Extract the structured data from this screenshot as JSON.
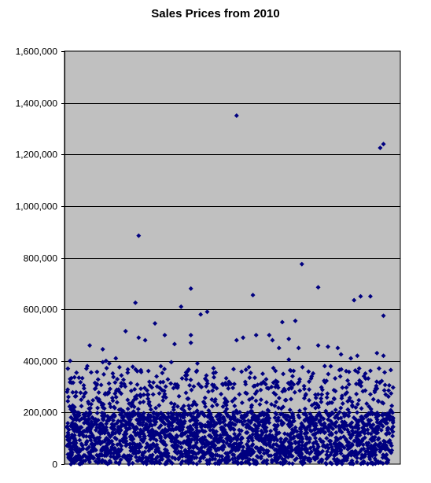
{
  "chart_data": {
    "type": "scatter",
    "title": "Sales Prices from 2010",
    "xlabel": "",
    "ylabel": "",
    "ylim": [
      0,
      1600000
    ],
    "yticks": [
      0,
      200000,
      400000,
      600000,
      800000,
      1000000,
      1200000,
      1400000,
      1600000
    ],
    "ytick_labels": [
      "0",
      "200,000",
      "400,000",
      "600,000",
      "800,000",
      "1,000,000",
      "1,200,000",
      "1,400,000",
      "1,600,000"
    ],
    "xlim": [
      0,
      1
    ],
    "grid": true,
    "legend": "none",
    "colors": {
      "plot_background": "#c0c0c0",
      "marker": "#000080",
      "gridline": "#000000",
      "axis": "#000000"
    },
    "marker": "diamond",
    "series": [
      {
        "values": [
          [
            0.01,
            400000
          ],
          [
            0.01,
            330000
          ],
          [
            0.02,
            210000
          ],
          [
            0.06,
            370000
          ],
          [
            0.07,
            460000
          ],
          [
            0.11,
            395000
          ],
          [
            0.11,
            445000
          ],
          [
            0.12,
            400000
          ],
          [
            0.13,
            390000
          ],
          [
            0.15,
            410000
          ],
          [
            0.18,
            515000
          ],
          [
            0.21,
            625000
          ],
          [
            0.22,
            885000
          ],
          [
            0.22,
            490000
          ],
          [
            0.24,
            480000
          ],
          [
            0.27,
            545000
          ],
          [
            0.3,
            500000
          ],
          [
            0.32,
            395000
          ],
          [
            0.33,
            465000
          ],
          [
            0.35,
            610000
          ],
          [
            0.37,
            360000
          ],
          [
            0.38,
            680000
          ],
          [
            0.38,
            500000
          ],
          [
            0.38,
            470000
          ],
          [
            0.4,
            390000
          ],
          [
            0.41,
            580000
          ],
          [
            0.43,
            590000
          ],
          [
            0.52,
            1350000
          ],
          [
            0.52,
            480000
          ],
          [
            0.54,
            490000
          ],
          [
            0.56,
            335000
          ],
          [
            0.57,
            655000
          ],
          [
            0.58,
            500000
          ],
          [
            0.6,
            350000
          ],
          [
            0.62,
            500000
          ],
          [
            0.63,
            480000
          ],
          [
            0.65,
            450000
          ],
          [
            0.66,
            550000
          ],
          [
            0.68,
            485000
          ],
          [
            0.7,
            555000
          ],
          [
            0.71,
            450000
          ],
          [
            0.72,
            775000
          ],
          [
            0.75,
            340000
          ],
          [
            0.77,
            685000
          ],
          [
            0.77,
            460000
          ],
          [
            0.8,
            455000
          ],
          [
            0.83,
            450000
          ],
          [
            0.84,
            425000
          ],
          [
            0.88,
            635000
          ],
          [
            0.89,
            420000
          ],
          [
            0.9,
            650000
          ],
          [
            0.93,
            650000
          ],
          [
            0.96,
            1225000
          ],
          [
            0.97,
            1240000
          ],
          [
            0.97,
            575000
          ],
          [
            0.97,
            420000
          ],
          [
            0.95,
            430000
          ],
          [
            0.87,
            410000
          ],
          [
            0.79,
            380000
          ],
          [
            0.68,
            405000
          ]
        ]
      }
    ]
  }
}
